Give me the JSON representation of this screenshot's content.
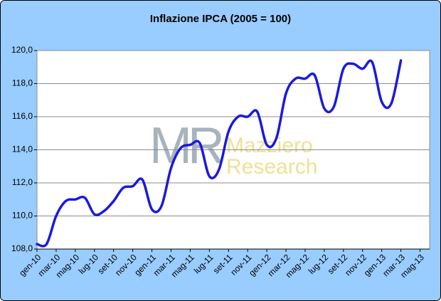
{
  "chart_data": {
    "type": "line",
    "title": "Inflazione IPCA (2005 = 100)",
    "watermark": [
      "MR",
      "Mazziero",
      "Research"
    ],
    "categories": [
      "gen-10",
      null,
      "mar-10",
      null,
      "mag-10",
      null,
      "lug-10",
      null,
      "set-10",
      null,
      "nov-10",
      null,
      "gen-11",
      null,
      "mar-11",
      null,
      "mag-11",
      null,
      "lug-11",
      null,
      "set-11",
      null,
      "nov-11",
      null,
      "gen-12",
      null,
      "mar-12",
      null,
      "mag-12",
      null,
      "lug-12",
      null,
      "set-12",
      null,
      "nov-12",
      null,
      "gen-13",
      null,
      "mar-13",
      null,
      "mag-13"
    ],
    "series": [
      {
        "color": "#1a1adc",
        "values": [
          108.3,
          108.3,
          110.0,
          110.9,
          111.0,
          111.1,
          110.1,
          110.3,
          110.9,
          111.7,
          111.8,
          112.2,
          110.4,
          110.6,
          112.9,
          114.1,
          114.3,
          114.4,
          112.4,
          112.8,
          115.1,
          116.0,
          116.0,
          116.3,
          114.3,
          114.7,
          117.4,
          118.3,
          118.3,
          118.5,
          116.5,
          116.6,
          118.9,
          119.2,
          118.9,
          119.3,
          116.9,
          116.8,
          119.4,
          null,
          null
        ]
      }
    ],
    "ylim": [
      108,
      120
    ],
    "yticks": [
      {
        "value": 108,
        "label": "108,0"
      },
      {
        "value": 110,
        "label": "110,0"
      },
      {
        "value": 112,
        "label": "112,0"
      },
      {
        "value": 114,
        "label": "114,0"
      },
      {
        "value": 116,
        "label": "116,0"
      },
      {
        "value": 118,
        "label": "118,0"
      },
      {
        "value": 120,
        "label": "120,0"
      }
    ],
    "grid": true
  }
}
